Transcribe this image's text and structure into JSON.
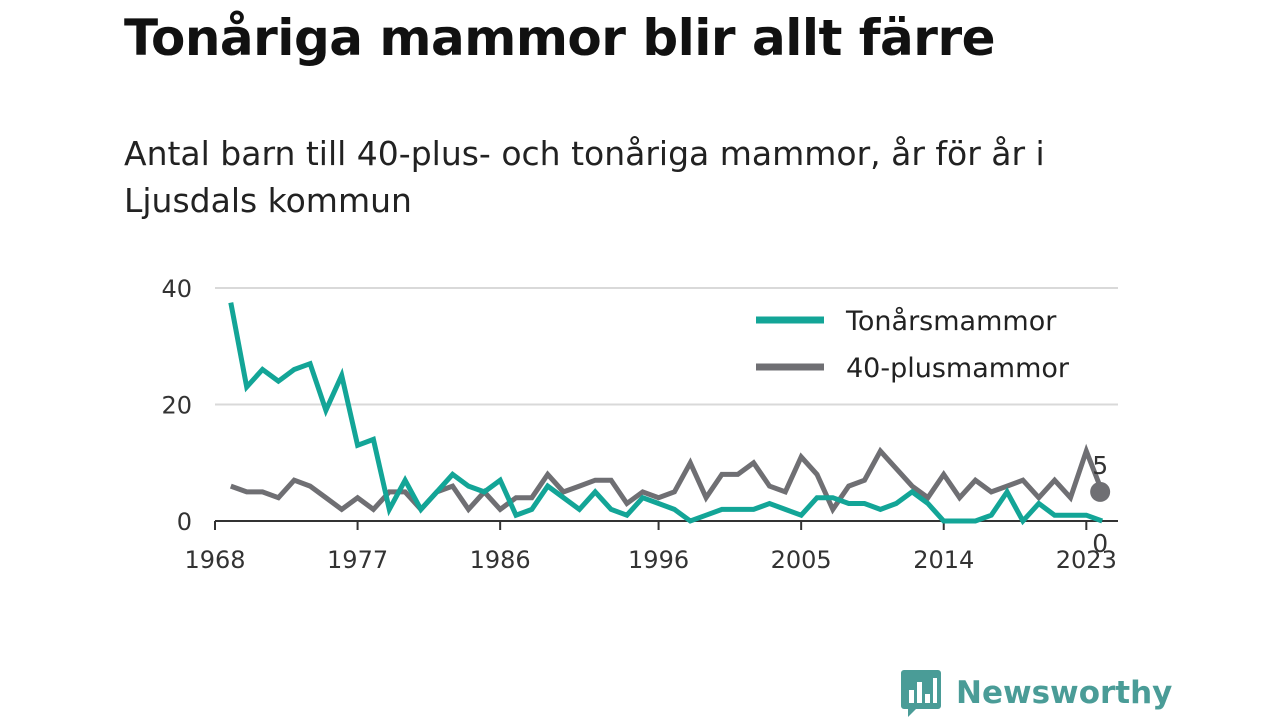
{
  "header": {
    "title": "Tonåriga mammor blir allt färre",
    "subtitle": "Antal barn till 40-plus- och tonåriga mammor, år för år i Ljusdals kommun"
  },
  "brand": {
    "name": "Newsworthy",
    "icon": "bar-chart-speech-bubble-icon",
    "color": "#4a9c97"
  },
  "chart_data": {
    "type": "line",
    "title": "",
    "xlabel": "",
    "ylabel": "",
    "x": [
      1969,
      1970,
      1971,
      1972,
      1973,
      1974,
      1975,
      1976,
      1977,
      1978,
      1979,
      1980,
      1981,
      1982,
      1983,
      1984,
      1985,
      1986,
      1987,
      1988,
      1989,
      1990,
      1991,
      1992,
      1993,
      1994,
      1995,
      1996,
      1997,
      1998,
      1999,
      2000,
      2001,
      2002,
      2003,
      2004,
      2005,
      2006,
      2007,
      2008,
      2009,
      2010,
      2011,
      2012,
      2013,
      2014,
      2015,
      2016,
      2017,
      2018,
      2019,
      2020,
      2021,
      2022,
      2023,
      2024
    ],
    "xlim": [
      1968,
      2025
    ],
    "ylim": [
      0,
      40
    ],
    "x_ticks": [
      1968,
      1977,
      1986,
      1996,
      2005,
      2014,
      2023
    ],
    "y_ticks": [
      0,
      20,
      40
    ],
    "grid": true,
    "legend_position": "top-right",
    "series": [
      {
        "name": "Tonårsmammor",
        "color": "#13a597",
        "values": [
          37.5,
          23,
          26,
          24,
          26,
          27,
          19,
          25,
          13,
          14,
          2,
          7,
          2,
          5,
          8,
          6,
          5,
          7,
          1,
          2,
          6,
          4,
          2,
          5,
          2,
          1,
          4,
          3,
          2,
          0,
          1,
          2,
          2,
          2,
          3,
          2,
          1,
          4,
          4,
          3,
          3,
          2,
          3,
          5,
          3,
          0,
          0,
          0,
          1,
          5,
          0,
          3,
          1,
          1,
          1,
          0
        ],
        "end_label": "0"
      },
      {
        "name": "40-plusmammor",
        "color": "#6f6f73",
        "values": [
          6,
          5,
          5,
          4,
          7,
          6,
          4,
          2,
          4,
          2,
          5,
          5,
          2,
          5,
          6,
          2,
          5,
          2,
          4,
          4,
          8,
          5,
          6,
          7,
          7,
          3,
          5,
          4,
          5,
          10,
          4,
          8,
          8,
          10,
          6,
          5,
          11,
          8,
          2,
          6,
          7,
          12,
          9,
          6,
          4,
          8,
          4,
          7,
          5,
          6,
          7,
          4,
          7,
          4,
          12,
          5
        ],
        "end_label": "5"
      }
    ]
  }
}
